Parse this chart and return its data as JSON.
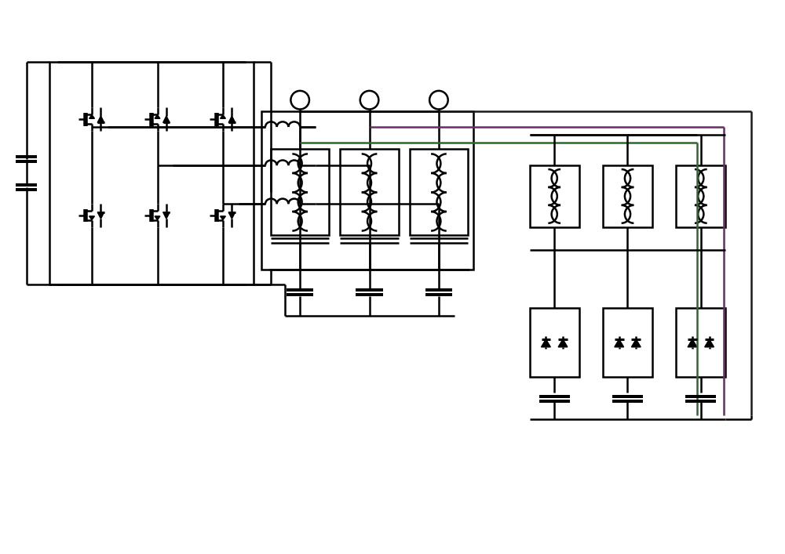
{
  "bg_color": "#ffffff",
  "line_color": "#000000",
  "line_width": 1.8,
  "fig_width": 10.0,
  "fig_height": 7.07,
  "dpi": 100,
  "xlim": [
    0,
    100
  ],
  "ylim": [
    0,
    72
  ]
}
